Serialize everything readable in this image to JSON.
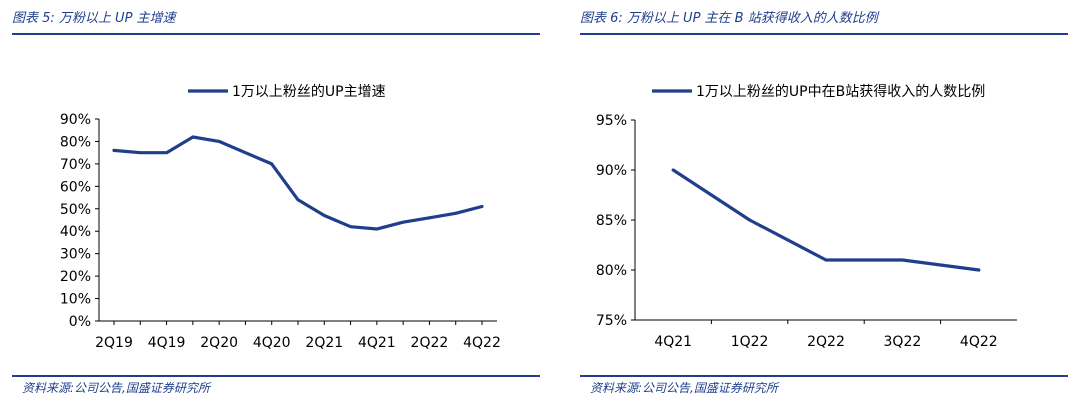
{
  "left": {
    "figure_title": "图表 5:  万粉以上 UP 主增速",
    "source": "资料来源:公司公告,国盛证券研究所",
    "chart_data": {
      "type": "line",
      "title": "",
      "legend": "1万以上粉丝的UP主增速",
      "categories": [
        "2Q19",
        "3Q19",
        "4Q19",
        "1Q20",
        "2Q20",
        "3Q20",
        "4Q20",
        "1Q21",
        "2Q21",
        "3Q21",
        "4Q21",
        "1Q22",
        "2Q22",
        "3Q22",
        "4Q22"
      ],
      "x_tick_labels": [
        "2Q19",
        "4Q19",
        "2Q20",
        "4Q20",
        "2Q21",
        "4Q21",
        "2Q22",
        "4Q22"
      ],
      "values": [
        76,
        75,
        75,
        82,
        80,
        75,
        70,
        54,
        47,
        42,
        41,
        44,
        46,
        48,
        51
      ],
      "ylim": [
        0,
        90
      ],
      "y_ticks": [
        0,
        10,
        20,
        30,
        40,
        50,
        60,
        70,
        80,
        90
      ],
      "y_format": "percent",
      "color": "#1f3e8c"
    }
  },
  "right": {
    "figure_title": "图表 6:  万粉以上 UP 主在 B 站获得收入的人数比例",
    "source": "资料来源:公司公告,国盛证券研究所",
    "chart_data": {
      "type": "line",
      "title": "",
      "legend": "1万以上粉丝的UP中在B站获得收入的人数比例",
      "categories": [
        "4Q21",
        "1Q22",
        "2Q22",
        "3Q22",
        "4Q22"
      ],
      "x_tick_labels": [
        "4Q21",
        "1Q22",
        "2Q22",
        "3Q22",
        "4Q22"
      ],
      "values": [
        90,
        85,
        81,
        81,
        80
      ],
      "ylim": [
        75,
        95
      ],
      "y_ticks": [
        75,
        80,
        85,
        90,
        95
      ],
      "y_format": "percent",
      "color": "#1f3e8c"
    }
  }
}
